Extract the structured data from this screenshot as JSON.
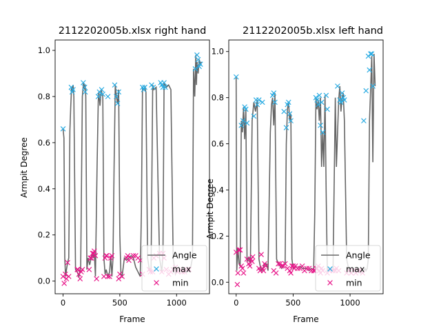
{
  "chart_data": [
    {
      "type": "line",
      "title": "2112202005b.xlsx right hand",
      "xlabel": "Frame",
      "ylabel": "Armpit Degree",
      "xlim": [
        -70,
        1290
      ],
      "ylim": [
        -0.055,
        1.045
      ],
      "xticks": [
        0,
        500,
        1000
      ],
      "yticks": [
        0.0,
        0.2,
        0.4,
        0.6,
        0.8,
        1.0
      ],
      "legend": {
        "position": "lower-right",
        "entries": [
          "Angle",
          "max",
          "min"
        ]
      },
      "series": [
        {
          "name": "Angle",
          "kind": "line",
          "color": "#666666",
          "x": [
            0,
            8,
            15,
            22,
            30,
            40,
            50,
            60,
            68,
            75,
            80,
            88,
            95,
            110,
            125,
            140,
            155,
            170,
            180,
            190,
            195,
            200,
            210,
            220,
            235,
            255,
            265,
            275,
            285,
            300,
            310,
            315,
            325,
            335,
            350,
            360,
            370,
            380,
            395,
            410,
            420,
            430,
            440,
            450,
            460,
            470,
            480,
            490,
            500,
            510,
            520,
            540,
            560,
            580,
            600,
            620,
            640,
            660,
            680,
            690,
            700,
            710,
            720,
            730,
            745,
            760,
            775,
            790,
            800,
            820,
            850,
            870,
            880,
            890,
            910,
            930,
            950,
            970,
            990,
            1010,
            1030,
            1050,
            1070,
            1090,
            1110,
            1125,
            1140,
            1150,
            1160,
            1170,
            1175,
            1180,
            1190,
            1200,
            1210,
            1220
          ],
          "y": [
            0.66,
            0.62,
            0.1,
            0.02,
            0.05,
            0.08,
            0.1,
            0.65,
            0.76,
            0.84,
            0.82,
            0.85,
            0.8,
            0.05,
            0.04,
            0.02,
            0.06,
            0.8,
            0.86,
            0.83,
            0.85,
            0.8,
            0.05,
            0.1,
            0.07,
            0.12,
            0.1,
            0.13,
            0.02,
            0.5,
            0.78,
            0.82,
            0.76,
            0.83,
            0.8,
            0.1,
            0.03,
            0.05,
            0.02,
            0.04,
            0.11,
            0.02,
            0.1,
            0.5,
            0.85,
            0.8,
            0.77,
            0.83,
            0.2,
            0.03,
            0.02,
            0.1,
            0.09,
            0.1,
            0.11,
            0.1,
            0.06,
            0.04,
            0.02,
            0.3,
            0.84,
            0.83,
            0.84,
            0.82,
            0.1,
            0.05,
            0.04,
            0.85,
            0.83,
            0.84,
            0.1,
            0.04,
            0.12,
            0.86,
            0.84,
            0.85,
            0.83,
            0.1,
            0.03,
            0.05,
            0.04,
            0.06,
            0.04,
            0.05,
            0.05,
            0.06,
            0.1,
            0.92,
            0.8,
            0.98,
            0.85,
            0.95,
            0.9,
            0.96,
            0.94,
            0.95
          ]
        },
        {
          "name": "max",
          "kind": "marker",
          "color": "#29abe2",
          "x": [
            0,
            72,
            80,
            88,
            178,
            190,
            195,
            310,
            320,
            340,
            350,
            395,
            455,
            470,
            480,
            490,
            700,
            710,
            720,
            780,
            795,
            860,
            870,
            880,
            890,
            900,
            1165,
            1180,
            1190,
            1200,
            1210
          ],
          "y": [
            0.66,
            0.84,
            0.82,
            0.83,
            0.86,
            0.84,
            0.82,
            0.8,
            0.82,
            0.83,
            0.81,
            0.8,
            0.85,
            0.8,
            0.77,
            0.82,
            0.84,
            0.83,
            0.84,
            0.85,
            0.84,
            0.86,
            0.85,
            0.84,
            0.86,
            0.84,
            0.92,
            0.98,
            0.96,
            0.93,
            0.94
          ]
        },
        {
          "name": "min",
          "kind": "marker",
          "color": "#e8178a",
          "x": [
            0,
            10,
            20,
            30,
            40,
            50,
            125,
            130,
            140,
            150,
            160,
            170,
            230,
            240,
            250,
            260,
            270,
            275,
            285,
            295,
            360,
            370,
            380,
            385,
            395,
            410,
            420,
            430,
            490,
            500,
            520,
            560,
            570,
            580,
            600,
            620,
            640,
            660,
            680,
            700,
            760,
            770,
            790,
            800,
            820,
            850,
            870,
            880,
            890,
            910,
            930,
            950,
            970,
            990,
            1010,
            1030,
            1050,
            1070,
            1090,
            1110
          ],
          "y": [
            0.02,
            -0.01,
            0.03,
            0.01,
            0.08,
            0.02,
            0.05,
            0.05,
            0.03,
            0.01,
            0.04,
            0.05,
            0.05,
            0.1,
            0.1,
            0.12,
            0.12,
            0.13,
            0.11,
            0.01,
            0.02,
            0.1,
            0.11,
            0.11,
            0.02,
            0.02,
            0.1,
            0.11,
            0.01,
            0.03,
            0.02,
            0.1,
            0.11,
            0.09,
            0.1,
            0.11,
            0.11,
            0.1,
            0.09,
            0.03,
            0.05,
            0.04,
            0.04,
            0.1,
            0.11,
            0.12,
            0.04,
            0.12,
            0.1,
            0.05,
            0.03,
            0.04,
            0.05,
            0.06,
            0.04,
            0.05,
            0.04,
            0.04,
            0.05,
            0.05
          ]
        }
      ]
    },
    {
      "type": "line",
      "title": "2112202005b.xlsx left hand",
      "xlabel": "Frame",
      "ylabel": "Armpit Degree",
      "xlim": [
        -65,
        1290
      ],
      "ylim": [
        -0.05,
        1.05
      ],
      "xticks": [
        0,
        500,
        1000
      ],
      "yticks": [
        0.0,
        0.2,
        0.4,
        0.6,
        0.8,
        1.0
      ],
      "legend": {
        "position": "lower-right",
        "entries": [
          "Angle",
          "max",
          "min"
        ]
      },
      "series": [
        {
          "name": "Angle",
          "kind": "line",
          "color": "#666666",
          "x": [
            0,
            5,
            15,
            25,
            35,
            45,
            55,
            65,
            75,
            85,
            95,
            100,
            110,
            125,
            140,
            155,
            170,
            185,
            200,
            215,
            225,
            235,
            250,
            265,
            280,
            300,
            310,
            320,
            330,
            340,
            355,
            370,
            385,
            400,
            415,
            430,
            440,
            450,
            460,
            470,
            480,
            490,
            500,
            520,
            540,
            560,
            580,
            600,
            620,
            640,
            660,
            680,
            690,
            700,
            710,
            720,
            730,
            740,
            750,
            760,
            770,
            780,
            790,
            800,
            820,
            850,
            870,
            880,
            900,
            910,
            920,
            930,
            940,
            950,
            970,
            990,
            1010,
            1030,
            1050,
            1070,
            1090,
            1110,
            1120,
            1130,
            1140,
            1150,
            1160,
            1170,
            1180,
            1190,
            1200,
            1210,
            1220
          ],
          "y": [
            0.89,
            0.05,
            0.15,
            0.08,
            0.07,
            0.7,
            0.65,
            0.76,
            0.62,
            0.75,
            0.1,
            0.09,
            0.11,
            0.08,
            0.7,
            0.78,
            0.74,
            0.79,
            0.1,
            0.06,
            0.05,
            0.06,
            0.08,
            0.08,
            0.05,
            0.65,
            0.77,
            0.8,
            0.68,
            0.82,
            0.1,
            0.08,
            0.07,
            0.06,
            0.07,
            0.08,
            0.6,
            0.75,
            0.78,
            0.7,
            0.73,
            0.1,
            0.06,
            0.07,
            0.06,
            0.07,
            0.06,
            0.06,
            0.06,
            0.05,
            0.06,
            0.05,
            0.3,
            0.8,
            0.75,
            0.79,
            0.7,
            0.8,
            0.5,
            0.65,
            0.5,
            0.81,
            0.4,
            0.05,
            0.06,
            0.05,
            0.8,
            0.5,
            0.79,
            0.85,
            0.74,
            0.8,
            0.82,
            0.7,
            0.1,
            0.05,
            0.04,
            0.06,
            0.05,
            0.06,
            0.04,
            0.05,
            0.05,
            0.06,
            0.05,
            0.06,
            0.1,
            0.7,
            0.83,
            0.98,
            0.52,
            0.99,
            0.85
          ]
        },
        {
          "name": "max",
          "kind": "marker",
          "color": "#29abe2",
          "x": [
            0,
            45,
            60,
            75,
            85,
            95,
            155,
            175,
            185,
            200,
            230,
            320,
            330,
            340,
            420,
            440,
            450,
            460,
            470,
            480,
            700,
            710,
            720,
            730,
            740,
            750,
            760,
            790,
            800,
            890,
            910,
            920,
            930,
            940,
            950,
            1120,
            1140,
            1160,
            1170,
            1180,
            1190,
            1200
          ],
          "y": [
            0.89,
            0.68,
            0.7,
            0.76,
            0.75,
            0.69,
            0.72,
            0.79,
            0.77,
            0.79,
            0.78,
            0.81,
            0.82,
            0.78,
            0.74,
            0.67,
            0.77,
            0.78,
            0.73,
            0.7,
            0.8,
            0.79,
            0.77,
            0.81,
            0.68,
            0.78,
            0.65,
            0.81,
            0.75,
            0.85,
            0.79,
            0.78,
            0.82,
            0.8,
            0.79,
            0.7,
            0.83,
            0.98,
            0.92,
            0.99,
            0.99,
            0.85
          ]
        },
        {
          "name": "min",
          "kind": "marker",
          "color": "#e8178a",
          "x": [
            0,
            10,
            15,
            25,
            35,
            45,
            55,
            65,
            95,
            110,
            120,
            130,
            140,
            145,
            200,
            210,
            220,
            230,
            240,
            250,
            260,
            330,
            350,
            370,
            385,
            400,
            415,
            430,
            450,
            470,
            480,
            490,
            500,
            510,
            520,
            540,
            560,
            580,
            600,
            620,
            640,
            660,
            680,
            690,
            700,
            710,
            720,
            730,
            740,
            750,
            760,
            800,
            820,
            850,
            870,
            880,
            900,
            970,
            990,
            1010,
            1030,
            1050,
            1070,
            1090,
            1110
          ],
          "y": [
            0.13,
            -0.01,
            0.04,
            0.14,
            0.14,
            0.07,
            0.06,
            0.04,
            0.1,
            0.08,
            0.07,
            0.1,
            0.09,
            0.11,
            0.06,
            0.05,
            0.12,
            0.06,
            0.05,
            0.08,
            0.07,
            0.05,
            0.04,
            0.08,
            0.08,
            0.07,
            0.07,
            0.08,
            0.06,
            0.05,
            0.04,
            0.07,
            0.07,
            0.06,
            0.07,
            0.06,
            0.06,
            0.07,
            0.05,
            0.06,
            0.06,
            0.05,
            0.05,
            0.05,
            0.06,
            0.06,
            0.07,
            0.05,
            0.04,
            0.06,
            0.05,
            0.04,
            0.05,
            0.05,
            0.05,
            0.06,
            0.05,
            0.04,
            0.05,
            0.04,
            0.05,
            0.04,
            0.05,
            0.05,
            0.04
          ]
        }
      ]
    }
  ],
  "colors": {
    "angle_line": "#666666",
    "max_marker": "#29abe2",
    "min_marker": "#e8178a",
    "background": "#ffffff"
  }
}
